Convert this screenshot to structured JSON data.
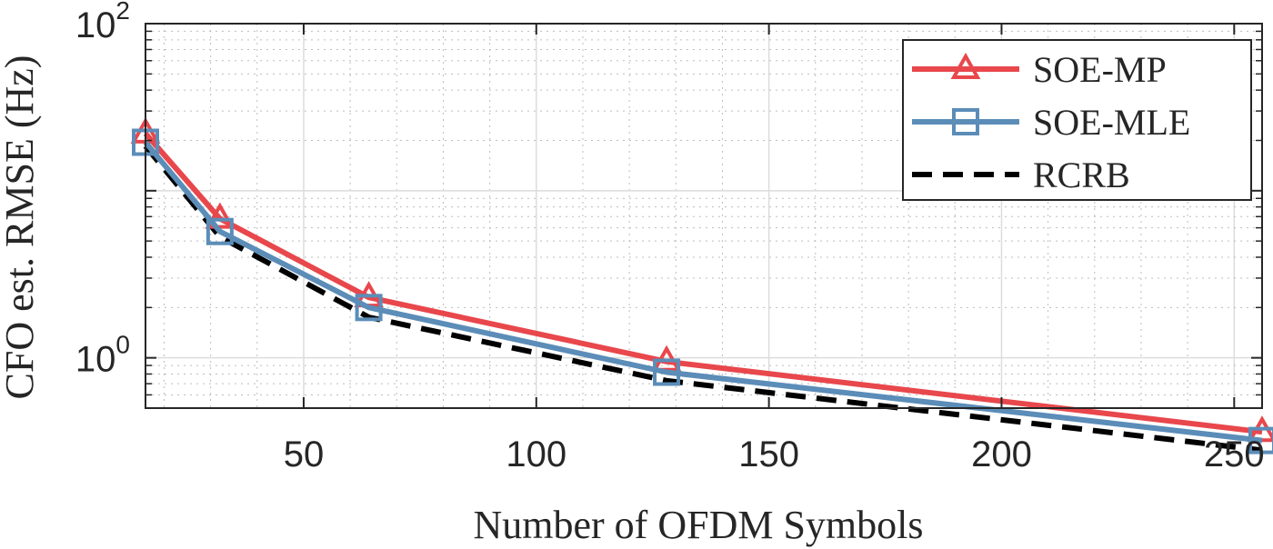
{
  "chart_data": {
    "type": "line",
    "xlabel": "Number of OFDM Symbols",
    "ylabel": "CFO est. RMSE (Hz)",
    "x_scale": "linear",
    "y_scale": "log",
    "xlim": [
      16,
      256
    ],
    "ylim": [
      0.5,
      100
    ],
    "x_ticks": [
      50,
      100,
      150,
      200,
      250
    ],
    "y_ticks": [
      {
        "value": 1,
        "base": "10",
        "exp": "0"
      },
      {
        "value": 100,
        "base": "10",
        "exp": "2"
      }
    ],
    "grid": true,
    "minor_grid": true,
    "legend_position": "top-right",
    "x": [
      16,
      32,
      64,
      128,
      256
    ],
    "series": [
      {
        "name": "SOE-MP",
        "values": [
          22.0,
          6.8,
          2.3,
          0.95,
          0.36
        ],
        "color": "#e8474c",
        "marker": "triangle",
        "dash": "solid"
      },
      {
        "name": "SOE-MLE",
        "values": [
          19.5,
          5.7,
          2.0,
          0.82,
          0.32
        ],
        "color": "#5b8db8",
        "marker": "square",
        "dash": "solid"
      },
      {
        "name": "RCRB",
        "values": [
          18.5,
          5.3,
          1.75,
          0.73,
          0.28
        ],
        "color": "#000000",
        "marker": "none",
        "dash": "dashed"
      }
    ]
  }
}
